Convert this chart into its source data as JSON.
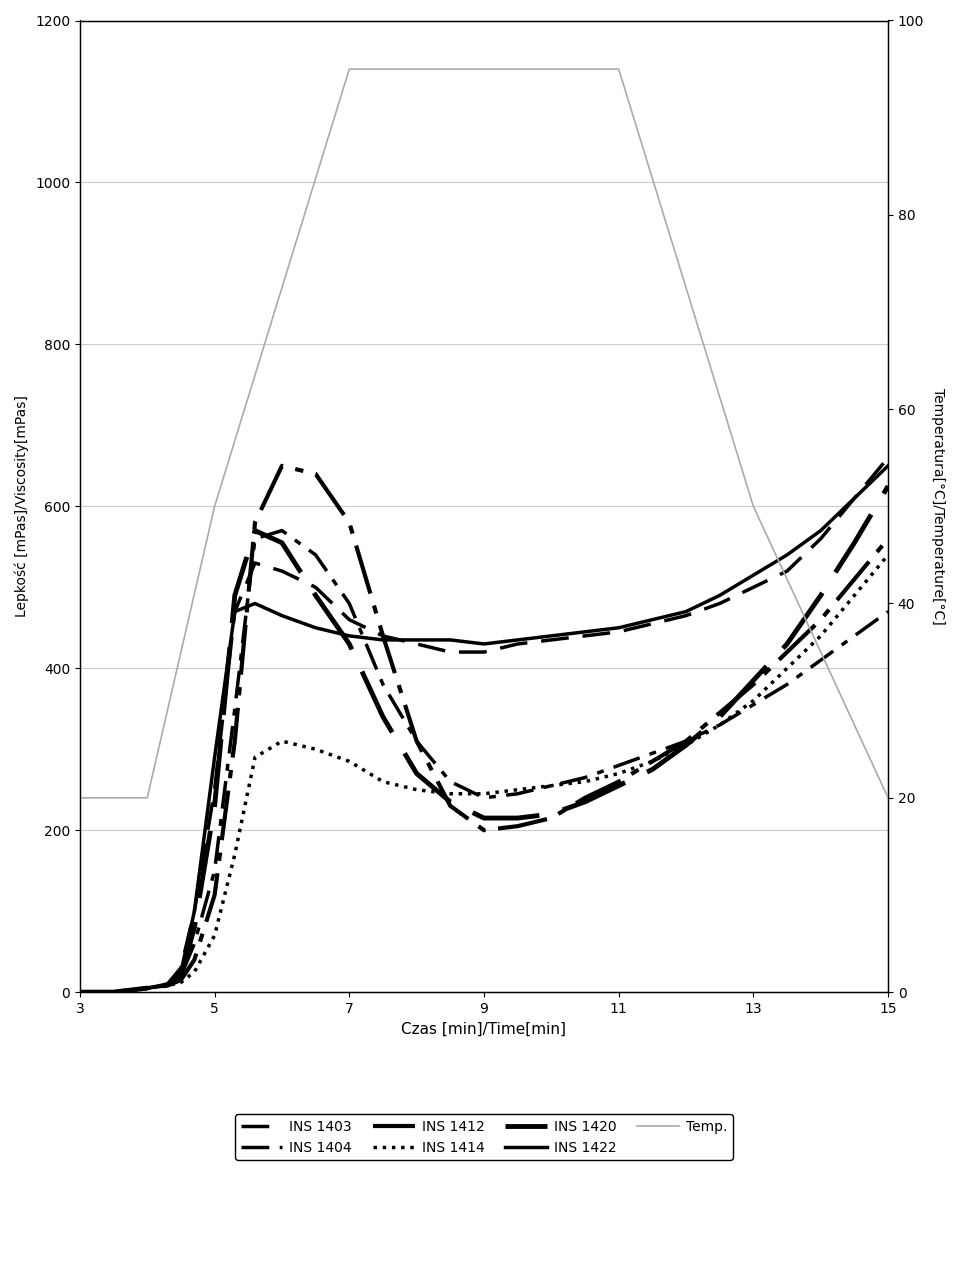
{
  "title": "",
  "xlabel": "Czas [min]/Time[min]",
  "ylabel_left": "Lepkość [mPas]/Viscosity[mPas]",
  "ylabel_right": "Temperatura[°C]/Temperature[°C]",
  "xlim": [
    3,
    15
  ],
  "ylim_left": [
    0,
    1200
  ],
  "ylim_right": [
    0,
    100
  ],
  "xticks": [
    3,
    5,
    7,
    9,
    11,
    13,
    15
  ],
  "yticks_left": [
    0,
    200,
    400,
    600,
    800,
    1000,
    1200
  ],
  "yticks_right": [
    0,
    20,
    40,
    60,
    80,
    100
  ],
  "background_color": "#ffffff",
  "series": {
    "INS1403": {
      "x": [
        3.0,
        3.5,
        4.0,
        4.3,
        4.5,
        4.7,
        5.0,
        5.3,
        5.6,
        6.0,
        6.5,
        7.0,
        7.5,
        8.0,
        8.5,
        9.0,
        9.5,
        10.0,
        10.5,
        11.0,
        11.5,
        12.0,
        12.5,
        13.0,
        13.5,
        14.0,
        14.5,
        15.0
      ],
      "y": [
        0,
        0,
        5,
        10,
        30,
        100,
        250,
        470,
        530,
        520,
        500,
        460,
        440,
        430,
        420,
        420,
        430,
        435,
        440,
        445,
        455,
        465,
        480,
        500,
        520,
        560,
        610,
        660
      ],
      "linestyle": "dashed",
      "linewidth": 2.5,
      "color": "#000000",
      "dash_pattern": [
        8,
        4
      ]
    },
    "INS1404": {
      "x": [
        3.0,
        3.5,
        4.0,
        4.3,
        4.5,
        4.7,
        5.0,
        5.3,
        5.6,
        6.0,
        6.5,
        7.0,
        7.5,
        8.0,
        8.5,
        9.0,
        9.5,
        10.0,
        10.5,
        11.0,
        11.5,
        12.0,
        12.5,
        13.0,
        13.5,
        14.0,
        14.5,
        15.0
      ],
      "y": [
        0,
        0,
        5,
        8,
        20,
        60,
        150,
        350,
        560,
        570,
        540,
        480,
        380,
        310,
        260,
        240,
        245,
        255,
        265,
        280,
        295,
        310,
        330,
        355,
        380,
        410,
        440,
        470
      ],
      "linestyle": "dashdot",
      "linewidth": 2.5,
      "color": "#000000",
      "dash_pattern": [
        8,
        3,
        2,
        3
      ]
    },
    "INS1412": {
      "x": [
        3.0,
        3.5,
        4.0,
        4.3,
        4.5,
        4.7,
        5.0,
        5.3,
        5.6,
        6.0,
        6.5,
        7.0,
        7.5,
        8.0,
        8.5,
        9.0,
        9.5,
        10.0,
        10.5,
        11.0,
        11.5,
        12.0,
        12.5,
        13.0,
        13.5,
        14.0,
        14.5,
        15.0
      ],
      "y": [
        0,
        0,
        5,
        8,
        15,
        40,
        120,
        310,
        580,
        650,
        640,
        580,
        440,
        310,
        230,
        200,
        205,
        215,
        240,
        260,
        285,
        310,
        345,
        380,
        420,
        460,
        510,
        560
      ],
      "linestyle": "dashdot",
      "linewidth": 3.0,
      "color": "#000000",
      "dash_pattern": [
        12,
        3,
        2,
        3
      ]
    },
    "INS1414": {
      "x": [
        3.0,
        3.5,
        4.0,
        4.3,
        4.5,
        4.7,
        5.0,
        5.3,
        5.6,
        6.0,
        6.5,
        7.0,
        7.5,
        8.0,
        8.5,
        9.0,
        9.5,
        10.0,
        10.5,
        11.0,
        11.5,
        12.0,
        12.5,
        13.0,
        13.5,
        14.0,
        14.5,
        15.0
      ],
      "y": [
        0,
        0,
        5,
        8,
        12,
        25,
        70,
        170,
        290,
        310,
        300,
        285,
        260,
        250,
        245,
        245,
        250,
        255,
        260,
        270,
        285,
        305,
        330,
        360,
        400,
        440,
        490,
        540
      ],
      "linestyle": "dotted",
      "linewidth": 2.5,
      "color": "#000000"
    },
    "INS1420": {
      "x": [
        3.0,
        3.5,
        4.0,
        4.3,
        4.5,
        4.7,
        5.0,
        5.3,
        5.6,
        6.0,
        6.5,
        7.0,
        7.5,
        8.0,
        8.5,
        9.0,
        9.5,
        10.0,
        10.5,
        11.0,
        11.5,
        12.0,
        12.5,
        13.0,
        13.5,
        14.0,
        14.5,
        15.0
      ],
      "y": [
        0,
        0,
        5,
        8,
        20,
        80,
        230,
        490,
        570,
        555,
        490,
        430,
        340,
        270,
        235,
        215,
        215,
        220,
        235,
        255,
        275,
        305,
        340,
        385,
        430,
        490,
        555,
        625
      ],
      "linestyle": "dashed",
      "linewidth": 3.5,
      "color": "#000000",
      "dash_pattern": [
        14,
        5
      ]
    },
    "INS1422": {
      "x": [
        3.0,
        3.5,
        4.0,
        4.3,
        4.5,
        4.7,
        5.0,
        5.3,
        5.6,
        6.0,
        6.5,
        7.0,
        7.5,
        8.0,
        8.5,
        9.0,
        9.5,
        10.0,
        10.5,
        11.0,
        11.5,
        12.0,
        12.5,
        13.0,
        13.5,
        14.0,
        14.5,
        15.0
      ],
      "y": [
        0,
        0,
        5,
        10,
        25,
        100,
        290,
        470,
        480,
        465,
        450,
        440,
        435,
        435,
        435,
        430,
        435,
        440,
        445,
        450,
        460,
        470,
        490,
        515,
        540,
        570,
        610,
        650
      ],
      "linestyle": "solid",
      "linewidth": 2.5,
      "color": "#000000"
    },
    "Temp": {
      "x": [
        3.0,
        4.0,
        5.0,
        7.0,
        9.0,
        11.0,
        13.0,
        15.0
      ],
      "y_right": [
        20,
        20,
        50,
        95,
        95,
        95,
        50,
        20
      ],
      "linestyle": "solid",
      "linewidth": 1.2,
      "color": "#aaaaaa"
    }
  },
  "legend": [
    {
      "label": "INS 1403",
      "linestyle": "dashed",
      "dash_pattern": [
        8,
        4
      ],
      "linewidth": 2.5
    },
    {
      "label": "INS 1404",
      "linestyle": "dashdot_fine",
      "dash_pattern": [
        8,
        3,
        2,
        3
      ],
      "linewidth": 2.5
    },
    {
      "label": "INS 1412",
      "linestyle": "dashdot_bold",
      "dash_pattern": [
        12,
        3,
        2,
        3
      ],
      "linewidth": 3.0
    },
    {
      "label": "INS 1414",
      "linestyle": "dotted",
      "linewidth": 2.5
    },
    {
      "label": "INS 1420",
      "linestyle": "dashed_bold",
      "dash_pattern": [
        14,
        5
      ],
      "linewidth": 3.5
    },
    {
      "label": "INS 1422",
      "linestyle": "solid",
      "linewidth": 2.5
    },
    {
      "label": "Temp.",
      "linestyle": "solid",
      "linewidth": 1.2,
      "color": "#aaaaaa"
    }
  ]
}
